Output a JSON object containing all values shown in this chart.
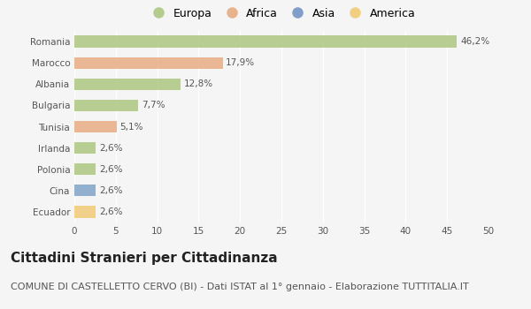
{
  "categories": [
    "Romania",
    "Marocco",
    "Albania",
    "Bulgaria",
    "Tunisia",
    "Irlanda",
    "Polonia",
    "Cina",
    "Ecuador"
  ],
  "values": [
    46.2,
    17.9,
    12.8,
    7.7,
    5.1,
    2.6,
    2.6,
    2.6,
    2.6
  ],
  "labels": [
    "46,2%",
    "17,9%",
    "12,8%",
    "7,7%",
    "5,1%",
    "2,6%",
    "2,6%",
    "2,6%",
    "2,6%"
  ],
  "bar_colors": [
    "#a8c47a",
    "#e8a87c",
    "#a8c47a",
    "#a8c47a",
    "#e8a87c",
    "#a8c47a",
    "#a8c47a",
    "#7a9fc4",
    "#f0c96e"
  ],
  "legend_labels": [
    "Europa",
    "Africa",
    "Asia",
    "America"
  ],
  "legend_colors": [
    "#a8c47a",
    "#e8a87c",
    "#6b8fc2",
    "#f0c96e"
  ],
  "xlim": [
    0,
    50
  ],
  "xticks": [
    0,
    5,
    10,
    15,
    20,
    25,
    30,
    35,
    40,
    45,
    50
  ],
  "title": "Cittadini Stranieri per Cittadinanza",
  "subtitle": "COMUNE DI CASTELLETTO CERVO (BI) - Dati ISTAT al 1° gennaio - Elaborazione TUTTITALIA.IT",
  "background_color": "#f5f5f5",
  "grid_color": "#ffffff",
  "bar_height": 0.55,
  "title_fontsize": 11,
  "subtitle_fontsize": 8,
  "label_fontsize": 7.5,
  "tick_fontsize": 7.5,
  "legend_fontsize": 9
}
